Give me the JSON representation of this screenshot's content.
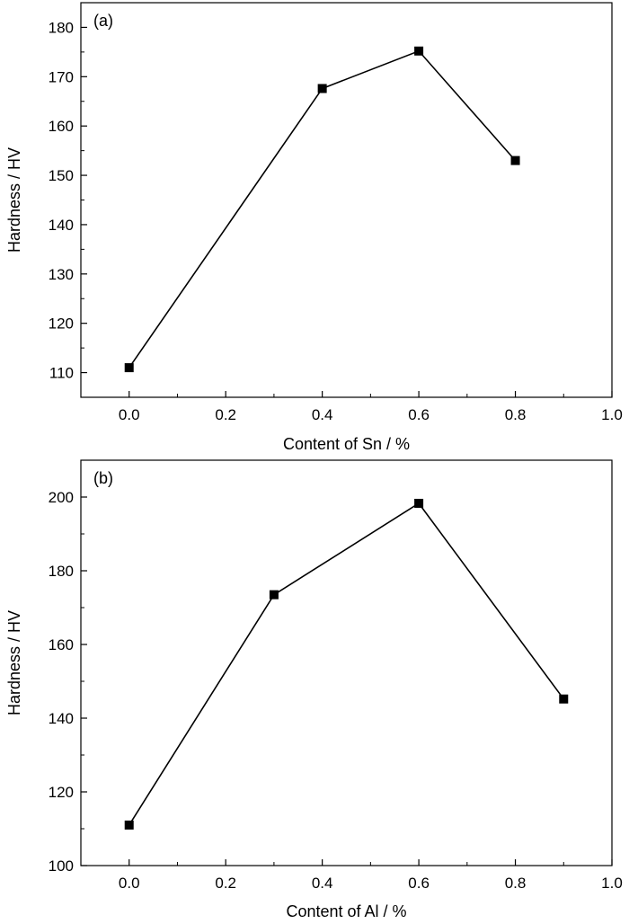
{
  "chart_data": [
    {
      "type": "line",
      "panel_label": "(a)",
      "xlabel": "Content of Sn / %",
      "ylabel": "Hardness / HV",
      "xlim": [
        -0.1,
        1.0
      ],
      "ylim": [
        105,
        185
      ],
      "x_ticks": [
        0.0,
        0.2,
        0.4,
        0.6,
        0.8,
        1.0
      ],
      "x_tick_labels": [
        "0.0",
        "0.2",
        "0.4",
        "0.6",
        "0.8",
        "1.0"
      ],
      "y_ticks": [
        110,
        120,
        130,
        140,
        150,
        160,
        170,
        180
      ],
      "y_tick_labels": [
        "110",
        "120",
        "130",
        "140",
        "150",
        "160",
        "170",
        "180"
      ],
      "y_minor_step": 5,
      "x_minor_step": 0.1,
      "grid": false,
      "marker": "square",
      "line_color": "#000000",
      "series": [
        {
          "x": [
            0.0,
            0.4,
            0.6,
            0.8
          ],
          "values": [
            111,
            167.6,
            175.2,
            153
          ]
        }
      ]
    },
    {
      "type": "line",
      "panel_label": "(b)",
      "xlabel": "Content of Al / %",
      "ylabel": "Hardness / HV",
      "xlim": [
        -0.1,
        1.0
      ],
      "ylim": [
        100,
        210
      ],
      "x_ticks": [
        0.0,
        0.2,
        0.4,
        0.6,
        0.8,
        1.0
      ],
      "x_tick_labels": [
        "0.0",
        "0.2",
        "0.4",
        "0.6",
        "0.8",
        "1.0"
      ],
      "y_ticks": [
        100,
        120,
        140,
        160,
        180,
        200
      ],
      "y_tick_labels": [
        "100",
        "120",
        "140",
        "160",
        "180",
        "200"
      ],
      "y_minor_step": 10,
      "x_minor_step": 0.1,
      "grid": false,
      "marker": "square",
      "line_color": "#000000",
      "series": [
        {
          "x": [
            0.0,
            0.3,
            0.6,
            0.9
          ],
          "values": [
            111,
            173.5,
            198.3,
            145.2
          ]
        }
      ]
    }
  ]
}
